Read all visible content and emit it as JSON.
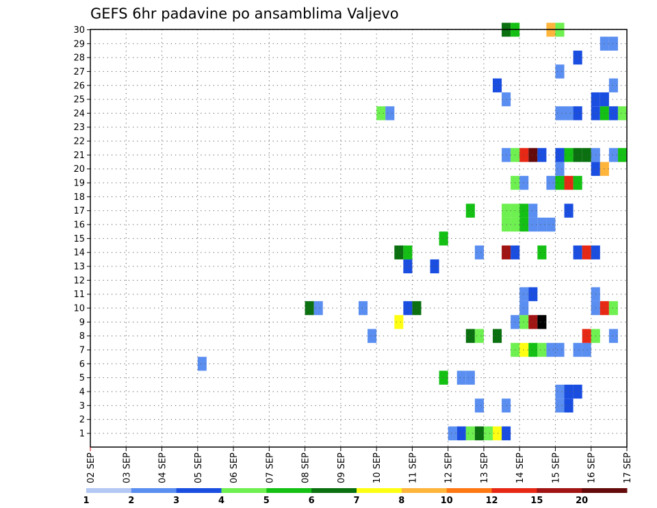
{
  "chart_data": {
    "type": "heatmap",
    "title": "GEFS 6hr padavine po ansamblima Valjevo",
    "xlabel": "",
    "ylabel": "",
    "x_tick_labels": [
      "02 SEP",
      "03 SEP",
      "04 SEP",
      "05 SEP",
      "06 SEP",
      "07 SEP",
      "08 SEP",
      "09 SEP",
      "10 SEP",
      "11 SEP",
      "12 SEP",
      "13 SEP",
      "14 SEP",
      "15 SEP",
      "16 SEP",
      "17 SEP"
    ],
    "y_tick_labels": [
      "1",
      "2",
      "3",
      "4",
      "5",
      "6",
      "7",
      "8",
      "9",
      "10",
      "11",
      "12",
      "13",
      "14",
      "15",
      "16",
      "17",
      "18",
      "19",
      "20",
      "21",
      "22",
      "23",
      "24",
      "25",
      "26",
      "27",
      "28",
      "29",
      "30"
    ],
    "xlim": [
      "02 SEP 00Z",
      "17 SEP 00Z"
    ],
    "ylim": [
      0.5,
      30
    ],
    "grid": true,
    "colorbar": {
      "labels": [
        "1",
        "2",
        "3",
        "4",
        "5",
        "6",
        "7",
        "8",
        "10",
        "12",
        "15",
        "20"
      ],
      "colors": [
        "#b4c8f4",
        "#5a8ef0",
        "#1a4ee0",
        "#6ef050",
        "#14c014",
        "#0a7010",
        "#ffff14",
        "#ffb43c",
        "#ff7814",
        "#e62814",
        "#a01414",
        "#640a0a"
      ]
    },
    "member_cells": [
      {
        "m": 1,
        "x": [
          "12 SEP 00Z",
          "12 SEP 06Z",
          "12 SEP 12Z",
          "12 SEP 18Z",
          "13 SEP 00Z",
          "13 SEP 06Z",
          "13 SEP 12Z"
        ],
        "c": [
          1,
          2,
          3,
          5,
          3,
          6,
          2
        ]
      },
      {
        "m": 3,
        "x": [
          "12 SEP 18Z"
        ],
        "c": [
          1
        ]
      },
      {
        "m": 3,
        "x": [
          "13 SEP 12Z"
        ],
        "c": [
          1
        ]
      },
      {
        "m": 3,
        "x": [
          "15 SEP 00Z"
        ],
        "c": [
          1
        ]
      },
      {
        "m": 3,
        "x": [
          "15 SEP 06Z"
        ],
        "c": [
          2
        ]
      },
      {
        "m": 4,
        "x": [
          "15 SEP 00Z",
          "15 SEP 06Z",
          "15 SEP 12Z"
        ],
        "c": [
          1,
          2,
          2
        ]
      },
      {
        "m": 5,
        "x": [
          "11 SEP 18Z",
          "12 SEP 06Z",
          "12 SEP 12Z"
        ],
        "c": [
          4,
          1,
          1
        ]
      },
      {
        "m": 6,
        "x": [
          "05 SEP 00Z"
        ],
        "c": [
          1
        ]
      },
      {
        "m": 7,
        "x": [
          "13 SEP 18Z",
          "14 SEP 00Z",
          "14 SEP 06Z",
          "14 SEP 12Z",
          "14 SEP 18Z",
          "15 SEP 00Z",
          "15 SEP 12Z",
          "15 SEP 18Z"
        ],
        "c": [
          3,
          6,
          4,
          3,
          1,
          1,
          1,
          1
        ]
      },
      {
        "m": 8,
        "x": [
          "09 SEP 18Z",
          "12 SEP 12Z",
          "12 SEP 18Z",
          "13 SEP 06Z",
          "15 SEP 18Z",
          "16 SEP 00Z",
          "16 SEP 12Z"
        ],
        "c": [
          1,
          5,
          3,
          5,
          9,
          3,
          1
        ]
      },
      {
        "m": 9,
        "x": [
          "10 SEP 12Z",
          "13 SEP 18Z",
          "14 SEP 00Z",
          "14 SEP 06Z",
          "14 SEP 12Z"
        ],
        "c": [
          6,
          1,
          3,
          10,
          12
        ]
      },
      {
        "m": 10,
        "x": [
          "08 SEP 00Z",
          "08 SEP 06Z",
          "09 SEP 12Z",
          "10 SEP 18Z",
          "11 SEP 00Z",
          "14 SEP 00Z",
          "16 SEP 00Z",
          "16 SEP 06Z",
          "16 SEP 12Z"
        ],
        "c": [
          5,
          1,
          1,
          2,
          5,
          1,
          1,
          9,
          3
        ]
      },
      {
        "m": 11,
        "x": [
          "14 SEP 00Z",
          "14 SEP 06Z",
          "16 SEP 00Z"
        ],
        "c": [
          1,
          2,
          1
        ]
      },
      {
        "m": 13,
        "x": [
          "10 SEP 18Z",
          "11 SEP 12Z"
        ],
        "c": [
          2,
          2
        ]
      },
      {
        "m": 14,
        "x": [
          "10 SEP 12Z",
          "10 SEP 18Z",
          "12 SEP 18Z",
          "13 SEP 12Z",
          "13 SEP 18Z",
          "14 SEP 12Z",
          "15 SEP 12Z",
          "15 SEP 18Z",
          "16 SEP 00Z"
        ],
        "c": [
          5,
          4,
          1,
          10,
          2,
          4,
          2,
          9,
          2
        ]
      },
      {
        "m": 15,
        "x": [
          "11 SEP 18Z"
        ],
        "c": [
          4
        ]
      },
      {
        "m": 16,
        "x": [
          "13 SEP 12Z",
          "13 SEP 18Z",
          "14 SEP 00Z",
          "14 SEP 06Z",
          "14 SEP 12Z",
          "14 SEP 18Z"
        ],
        "c": [
          3,
          3,
          4,
          1,
          1,
          1
        ]
      },
      {
        "m": 17,
        "x": [
          "12 SEP 12Z",
          "13 SEP 12Z",
          "13 SEP 18Z",
          "14 SEP 00Z",
          "14 SEP 06Z",
          "15 SEP 06Z"
        ],
        "c": [
          4,
          3,
          3,
          4,
          1,
          2
        ]
      },
      {
        "m": 19,
        "x": [
          "13 SEP 18Z",
          "14 SEP 00Z",
          "14 SEP 18Z",
          "15 SEP 00Z",
          "15 SEP 06Z",
          "15 SEP 12Z"
        ],
        "c": [
          3,
          1,
          1,
          4,
          9,
          4
        ]
      },
      {
        "m": 20,
        "x": [
          "15 SEP 00Z",
          "16 SEP 00Z",
          "16 SEP 06Z"
        ],
        "c": [
          1,
          2,
          7
        ]
      },
      {
        "m": 21,
        "x": [
          "13 SEP 12Z",
          "13 SEP 18Z",
          "14 SEP 00Z",
          "14 SEP 06Z",
          "14 SEP 12Z",
          "15 SEP 00Z",
          "15 SEP 06Z",
          "15 SEP 12Z",
          "15 SEP 18Z",
          "16 SEP 00Z",
          "16 SEP 12Z",
          "16 SEP 18Z"
        ],
        "c": [
          1,
          3,
          9,
          11,
          2,
          2,
          4,
          5,
          5,
          1,
          1,
          4
        ]
      },
      {
        "m": 24,
        "x": [
          "10 SEP 00Z",
          "10 SEP 06Z",
          "15 SEP 00Z",
          "15 SEP 06Z",
          "15 SEP 12Z",
          "16 SEP 00Z",
          "16 SEP 06Z",
          "16 SEP 12Z",
          "16 SEP 18Z"
        ],
        "c": [
          3,
          1,
          1,
          1,
          2,
          2,
          4,
          2,
          3
        ]
      },
      {
        "m": 25,
        "x": [
          "13 SEP 12Z",
          "16 SEP 00Z",
          "16 SEP 06Z"
        ],
        "c": [
          1,
          2,
          2
        ]
      },
      {
        "m": 26,
        "x": [
          "13 SEP 06Z",
          "16 SEP 12Z"
        ],
        "c": [
          2,
          1
        ]
      },
      {
        "m": 27,
        "x": [
          "15 SEP 00Z"
        ],
        "c": [
          1
        ]
      },
      {
        "m": 28,
        "x": [
          "15 SEP 12Z"
        ],
        "c": [
          2
        ]
      },
      {
        "m": 29,
        "x": [
          "16 SEP 06Z",
          "16 SEP 12Z"
        ],
        "c": [
          1,
          1
        ]
      },
      {
        "m": 30,
        "x": [
          "13 SEP 12Z",
          "13 SEP 18Z",
          "14 SEP 18Z",
          "15 SEP 00Z"
        ],
        "c": [
          5,
          4,
          7,
          3
        ]
      }
    ]
  }
}
